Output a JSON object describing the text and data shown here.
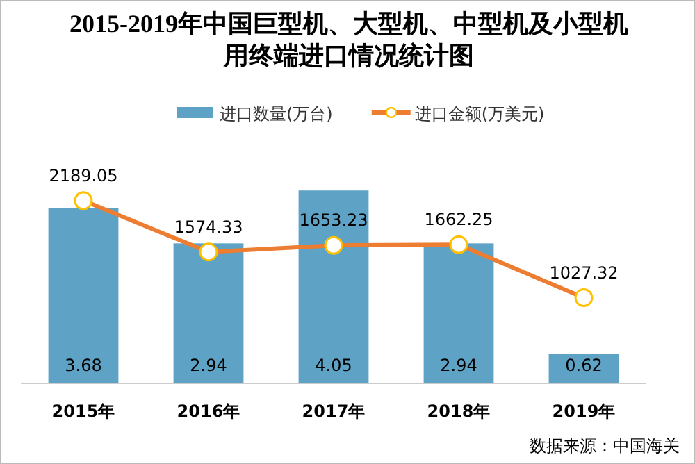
{
  "chart_data": {
    "type": "bar",
    "title": "2015-2019年中国巨型机、大型机、中型机及小型机用终端进口情况统计图",
    "categories": [
      "2015年",
      "2016年",
      "2017年",
      "2018年",
      "2019年"
    ],
    "series": [
      {
        "name": "进口数量(万台)",
        "color": "#5ea3c6",
        "values": [
          3.68,
          2.94,
          4.05,
          2.94,
          0.62
        ]
      },
      {
        "name": "进口金额(万美元)",
        "type": "line",
        "axis": "y2",
        "color": "#ed7d31",
        "marker": "circle",
        "values": [
          2189.05,
          1574.33,
          1653.23,
          1662.25,
          1027.32
        ]
      }
    ],
    "data_labels": true,
    "legend": "top",
    "grid": false,
    "annotations": [
      "数据来源：中国海关"
    ]
  }
}
